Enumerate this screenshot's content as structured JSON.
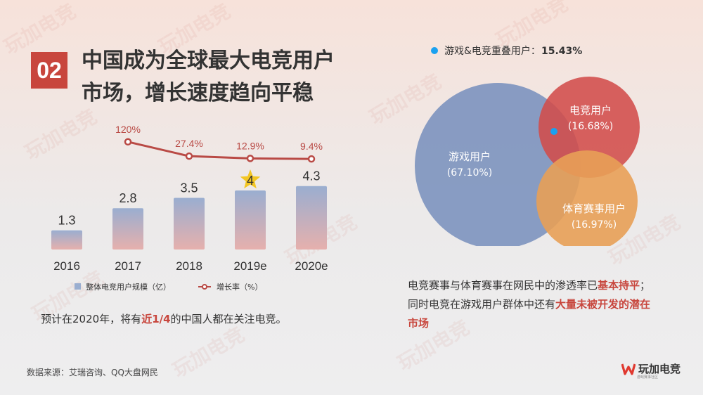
{
  "slide": {
    "number": "02",
    "title_line1": "中国成为全球最大电竞用户",
    "title_line2": "市场，增长速度趋向平稳",
    "note_prefix": "预计在2020年，将有",
    "note_highlight": "近1/4",
    "note_suffix": "的中国人都在关注电竞。",
    "source": "数据来源：艾瑞咨询、QQ大盘网民",
    "venn_text_a": "电竞赛事与体育赛事在网民中的渗透率已",
    "venn_text_b": "基本持平",
    "venn_text_c": "；同时电竞在游戏用户群体中还有",
    "venn_text_d": "大量未被开发的潜在市场",
    "logo_text": "玩加电竞",
    "logo_sub": "游戏赛事社区",
    "watermark": "玩加电竞"
  },
  "chart_data": [
    {
      "type": "bar",
      "categories": [
        "2016",
        "2017",
        "2018",
        "2019e",
        "2020e"
      ],
      "series": [
        {
          "name": "整体电竞用户规模（亿）",
          "values": [
            1.3,
            2.8,
            3.5,
            4,
            4.3
          ],
          "color": "#9aaed0"
        },
        {
          "name": "增长率（%）",
          "type": "line",
          "values": [
            null,
            120,
            27.4,
            12.9,
            9.4
          ],
          "labels": [
            "",
            "120%",
            "27.4%",
            "12.9%",
            "9.4%"
          ],
          "color": "#b94a45"
        }
      ],
      "highlight": {
        "category": "2019e",
        "marker": "star",
        "color": "#f3c623"
      },
      "legend": "bottom"
    },
    {
      "type": "venn",
      "legend_label": "游戏&电竞重叠用户：",
      "legend_value": "15.43%",
      "legend_color": "#1aa1f0",
      "sets": [
        {
          "name": "游戏用户",
          "value": "(67.10%)",
          "color": "#7f95bf"
        },
        {
          "name": "电竞用户",
          "value": "(16.68%)",
          "color": "#d24c4a"
        },
        {
          "name": "体育赛事用户",
          "value": "(16.97%)",
          "color": "#e8a057"
        }
      ]
    }
  ]
}
